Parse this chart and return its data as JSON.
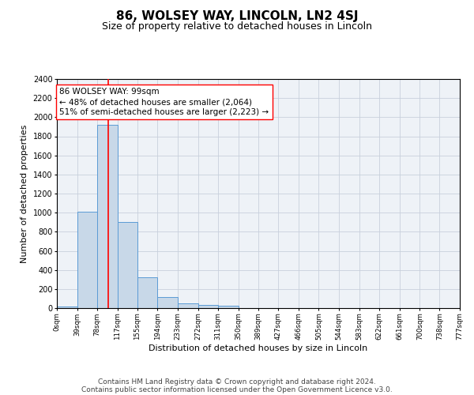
{
  "title": "86, WOLSEY WAY, LINCOLN, LN2 4SJ",
  "subtitle": "Size of property relative to detached houses in Lincoln",
  "xlabel": "Distribution of detached houses by size in Lincoln",
  "ylabel": "Number of detached properties",
  "bar_edges": [
    0,
    39,
    78,
    117,
    155,
    194,
    233,
    272,
    311,
    350,
    389,
    427,
    466,
    505,
    544,
    583,
    622,
    661,
    700,
    738,
    777
  ],
  "bar_heights": [
    20,
    1010,
    1920,
    905,
    320,
    115,
    50,
    30,
    25,
    0,
    0,
    0,
    0,
    0,
    0,
    0,
    0,
    0,
    0,
    0
  ],
  "bar_color": "#c8d8e8",
  "bar_edge_color": "#5b9bd5",
  "red_line_x": 99,
  "ylim": [
    0,
    2400
  ],
  "yticks": [
    0,
    200,
    400,
    600,
    800,
    1000,
    1200,
    1400,
    1600,
    1800,
    2000,
    2200,
    2400
  ],
  "xtick_labels": [
    "0sqm",
    "39sqm",
    "78sqm",
    "117sqm",
    "155sqm",
    "194sqm",
    "233sqm",
    "272sqm",
    "311sqm",
    "350sqm",
    "389sqm",
    "427sqm",
    "466sqm",
    "505sqm",
    "544sqm",
    "583sqm",
    "622sqm",
    "661sqm",
    "700sqm",
    "738sqm",
    "777sqm"
  ],
  "annotation_line1": "86 WOLSEY WAY: 99sqm",
  "annotation_line2": "← 48% of detached houses are smaller (2,064)",
  "annotation_line3": "51% of semi-detached houses are larger (2,223) →",
  "footer_line1": "Contains HM Land Registry data © Crown copyright and database right 2024.",
  "footer_line2": "Contains public sector information licensed under the Open Government Licence v3.0.",
  "bg_color": "#eef2f7",
  "grid_color": "#c8d0dc",
  "title_fontsize": 11,
  "subtitle_fontsize": 9,
  "annotation_fontsize": 7.5,
  "footer_fontsize": 6.5,
  "ylabel_fontsize": 8,
  "xlabel_fontsize": 8
}
